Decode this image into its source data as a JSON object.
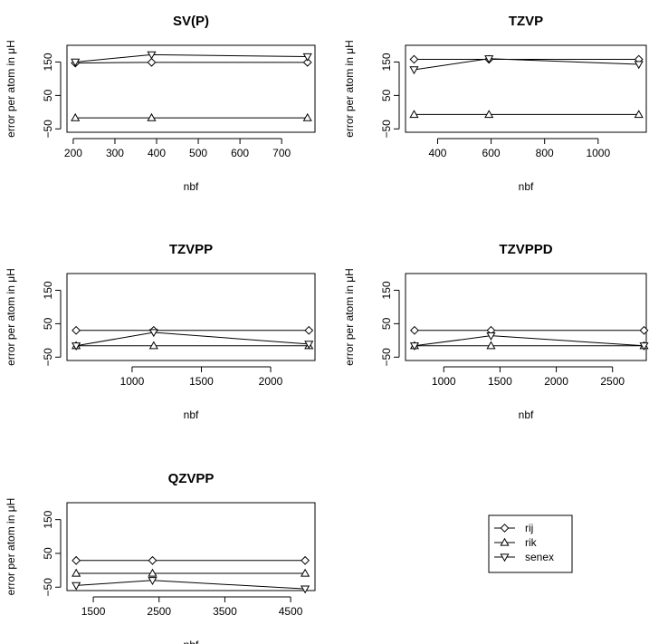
{
  "chart_data": [
    {
      "type": "line",
      "title": "SV(P)",
      "xlabel": "nbf",
      "ylabel": "error per atom in μH",
      "xlim": [
        185,
        780
      ],
      "ylim": [
        -60,
        200
      ],
      "xticks": [
        200,
        300,
        400,
        500,
        600,
        700
      ],
      "yticks": [
        -50,
        50,
        150
      ],
      "x": [
        205,
        388,
        762
      ],
      "series": [
        {
          "name": "rij",
          "marker": "diamond",
          "values": [
            147,
            149,
            149
          ]
        },
        {
          "name": "rik",
          "marker": "triangle-up",
          "values": [
            -17,
            -17,
            -17
          ]
        },
        {
          "name": "senex",
          "marker": "triangle-down",
          "values": [
            150,
            172,
            166
          ]
        }
      ]
    },
    {
      "type": "line",
      "title": "TZVP",
      "xlabel": "nbf",
      "ylabel": "error per atom in μH",
      "xlim": [
        280,
        1180
      ],
      "ylim": [
        -60,
        200
      ],
      "xticks": [
        400,
        600,
        800,
        1000
      ],
      "yticks": [
        -50,
        50,
        150
      ],
      "x": [
        312,
        592,
        1152
      ],
      "series": [
        {
          "name": "rij",
          "marker": "diamond",
          "values": [
            158,
            158,
            158
          ]
        },
        {
          "name": "rik",
          "marker": "triangle-up",
          "values": [
            -7,
            -7,
            -7
          ]
        },
        {
          "name": "senex",
          "marker": "triangle-down",
          "values": [
            127,
            160,
            143
          ]
        }
      ]
    },
    {
      "type": "line",
      "title": "TZVPP",
      "xlabel": "nbf",
      "ylabel": "error per atom in μH",
      "xlim": [
        530,
        2320
      ],
      "ylim": [
        -60,
        200
      ],
      "xticks": [
        1000,
        1500,
        2000
      ],
      "yticks": [
        -50,
        50,
        150
      ],
      "x": [
        596,
        1156,
        2276
      ],
      "series": [
        {
          "name": "rij",
          "marker": "diamond",
          "values": [
            30,
            30,
            30
          ]
        },
        {
          "name": "rik",
          "marker": "triangle-up",
          "values": [
            -16,
            -16,
            -16
          ]
        },
        {
          "name": "senex",
          "marker": "triangle-down",
          "values": [
            -16,
            24,
            -11
          ]
        }
      ]
    },
    {
      "type": "line",
      "title": "TZVPPD",
      "xlabel": "nbf",
      "ylabel": "error per atom in μH",
      "xlim": [
        660,
        2800
      ],
      "ylim": [
        -60,
        200
      ],
      "xticks": [
        1000,
        1500,
        2000,
        2500
      ],
      "yticks": [
        -50,
        50,
        150
      ],
      "x": [
        740,
        1420,
        2780
      ],
      "series": [
        {
          "name": "rij",
          "marker": "diamond",
          "values": [
            30,
            30,
            30
          ]
        },
        {
          "name": "rik",
          "marker": "triangle-up",
          "values": [
            -16,
            -16,
            -16
          ]
        },
        {
          "name": "senex",
          "marker": "triangle-down",
          "values": [
            -16,
            14,
            -16
          ]
        }
      ]
    },
    {
      "type": "line",
      "title": "QZVPP",
      "xlabel": "nbf",
      "ylabel": "error per atom in μH",
      "xlim": [
        1100,
        4870
      ],
      "ylim": [
        -60,
        200
      ],
      "xticks": [
        1500,
        2500,
        3500,
        4500
      ],
      "yticks": [
        -50,
        50,
        150
      ],
      "x": [
        1240,
        2400,
        4720
      ],
      "series": [
        {
          "name": "rij",
          "marker": "diamond",
          "values": [
            29,
            29,
            29
          ]
        },
        {
          "name": "rik",
          "marker": "triangle-up",
          "values": [
            -9,
            -9,
            -9
          ]
        },
        {
          "name": "senex",
          "marker": "triangle-down",
          "values": [
            -45,
            -30,
            -55
          ]
        }
      ]
    }
  ],
  "legend": {
    "items": [
      {
        "label": "rij",
        "marker": "diamond"
      },
      {
        "label": "rik",
        "marker": "triangle-up"
      },
      {
        "label": "senex",
        "marker": "triangle-down"
      }
    ]
  }
}
